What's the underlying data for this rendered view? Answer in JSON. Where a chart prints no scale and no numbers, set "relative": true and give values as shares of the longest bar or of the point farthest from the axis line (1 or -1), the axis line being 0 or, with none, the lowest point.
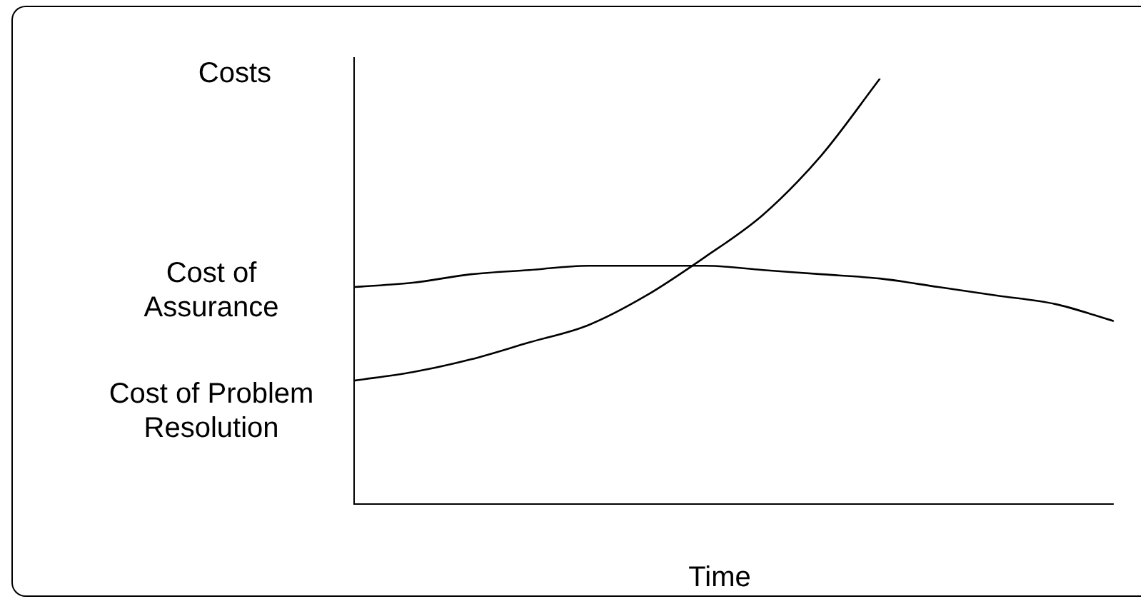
{
  "chart_data": {
    "type": "line",
    "relative": true,
    "ylabel": "Costs",
    "xlabel": "Time",
    "legend": false,
    "marker": "none",
    "line_style": "solid",
    "categories": [
      null,
      null,
      null,
      null,
      null,
      null,
      null,
      null,
      null,
      null,
      null,
      null,
      null,
      null
    ],
    "series": [
      {
        "name": "Cost of Assurance",
        "color": "#000000",
        "values": [
          0.51,
          0.52,
          0.54,
          0.55,
          0.56,
          0.56,
          0.56,
          0.55,
          0.54,
          0.53,
          0.51,
          0.49,
          0.47,
          0.43
        ]
      },
      {
        "name": "Cost of Problem Resolution",
        "color": "#000000",
        "values": [
          0.29,
          0.31,
          0.34,
          0.38,
          0.42,
          0.49,
          0.58,
          0.68,
          0.82,
          1,
          null,
          null,
          null,
          null
        ]
      }
    ]
  }
}
